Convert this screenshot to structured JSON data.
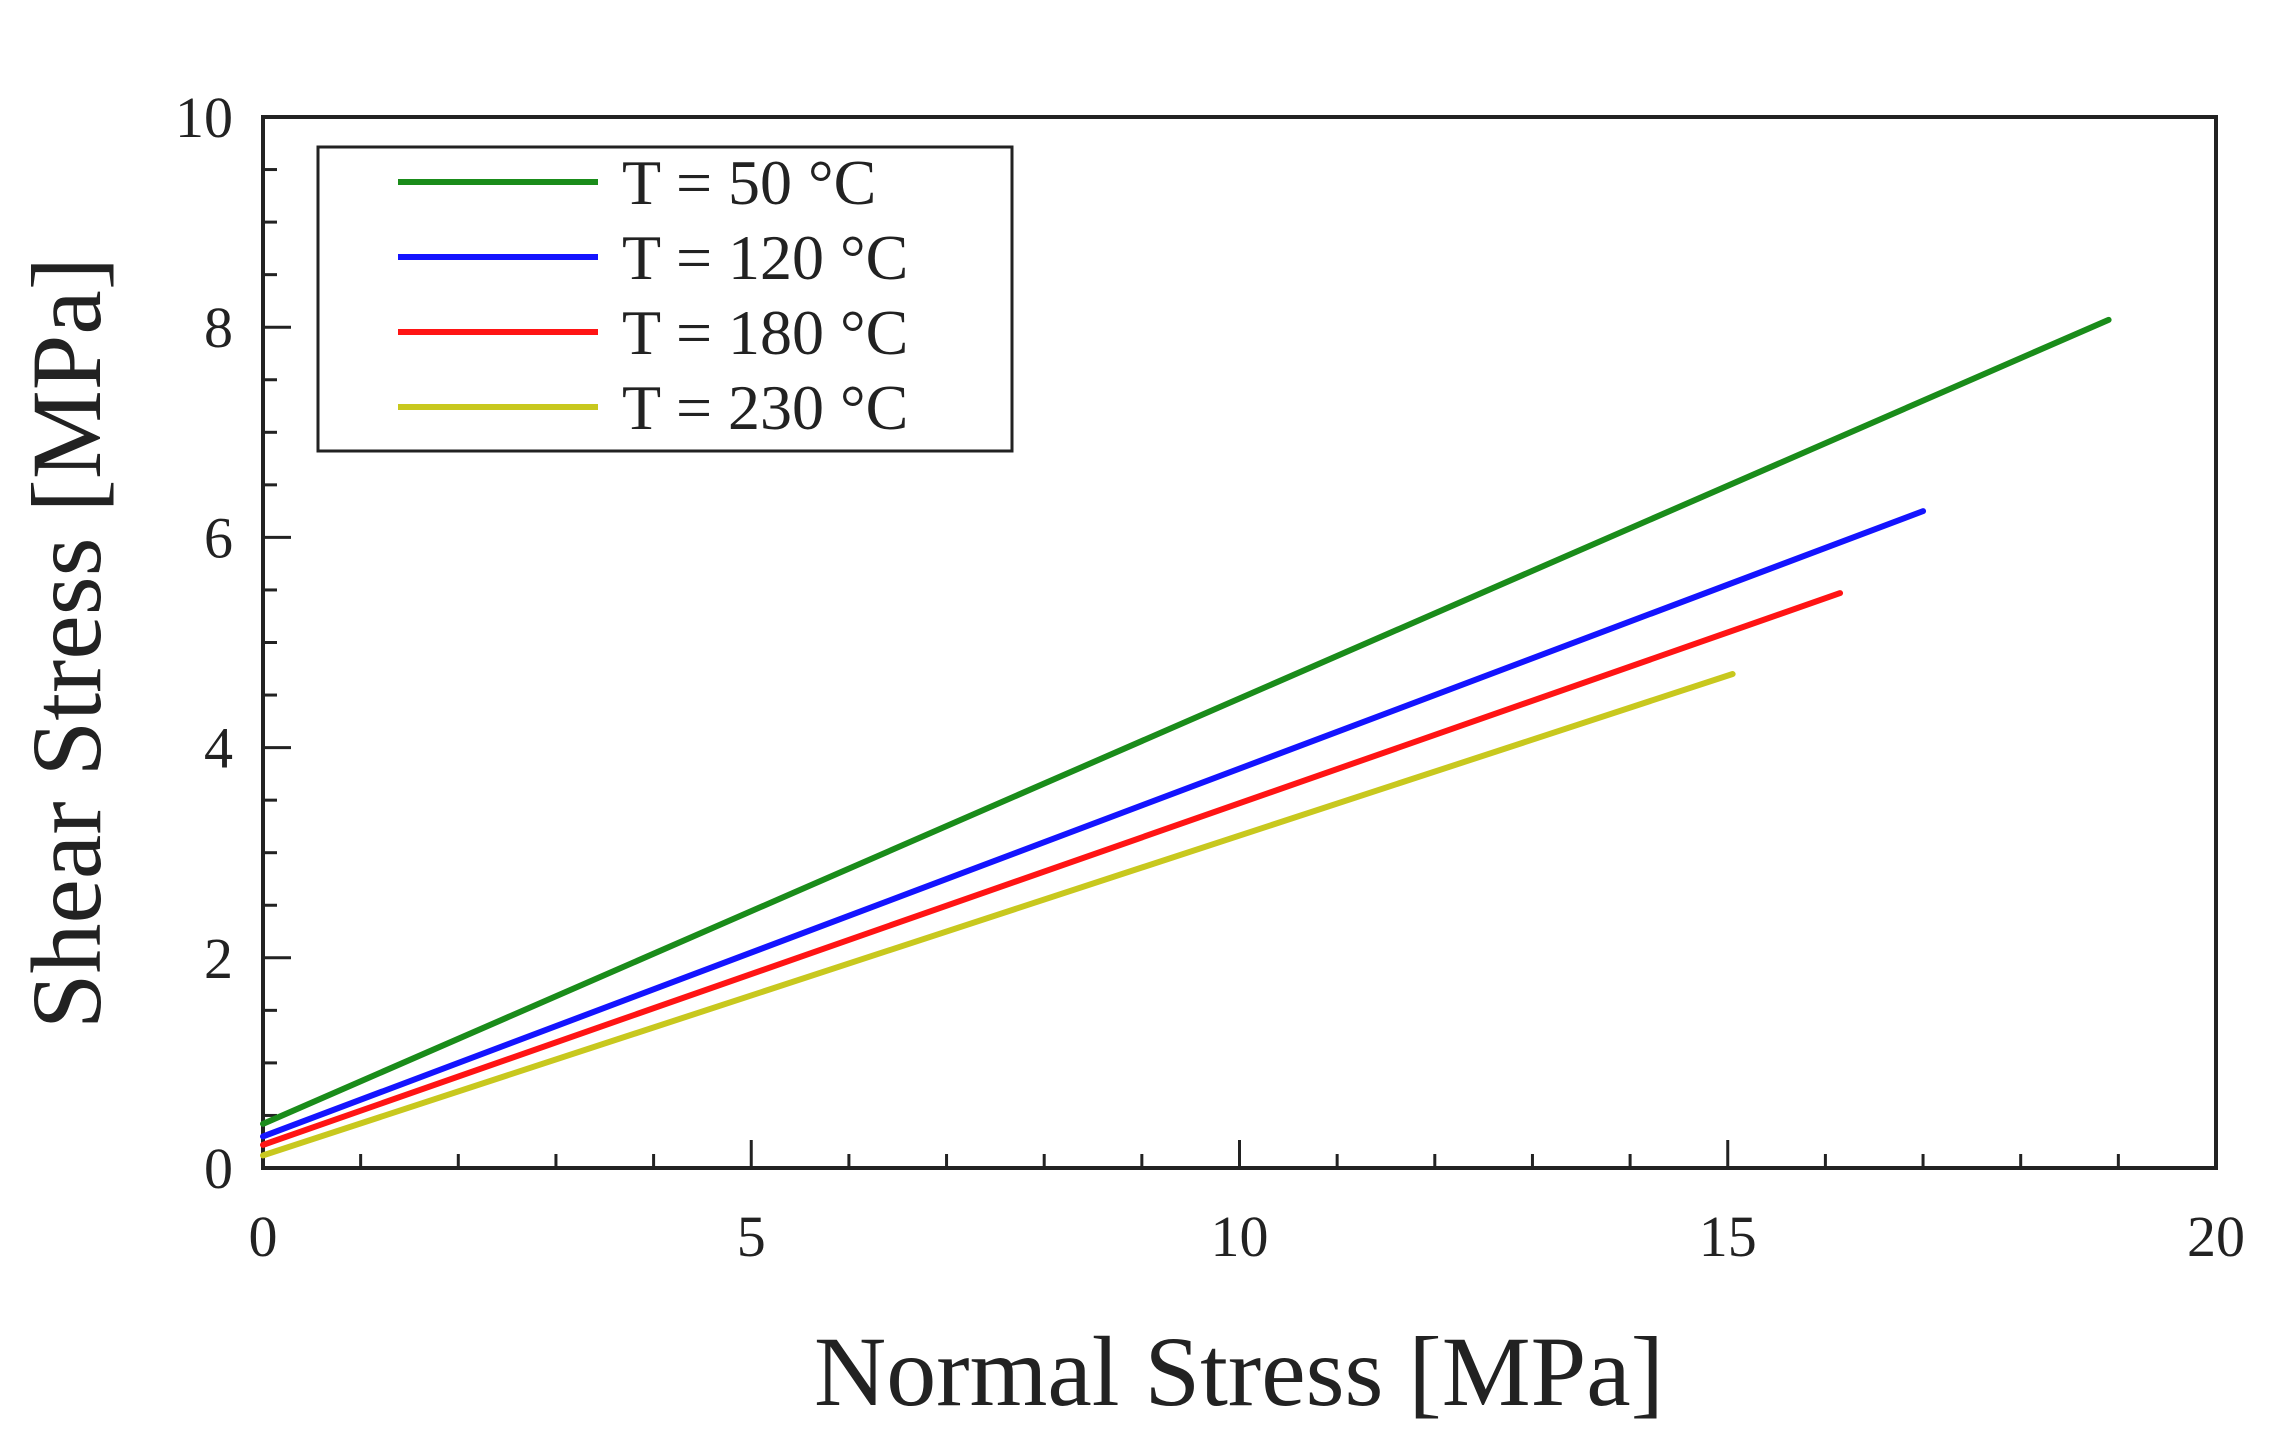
{
  "chart_data": {
    "type": "line",
    "title": "",
    "xlabel": "Normal Stress [MPa]",
    "ylabel": "Shear Stress [MPa]",
    "xlim": [
      0,
      20
    ],
    "ylim": [
      0,
      10
    ],
    "xticks": [
      0,
      5,
      10,
      15,
      20
    ],
    "yticks": [
      0,
      2,
      4,
      6,
      8,
      10
    ],
    "x_minor_step": 1,
    "y_minor_step": 0.5,
    "grid": false,
    "legend_position": "top-left",
    "series": [
      {
        "name": "T = 50 °C",
        "color": "#1a8c1a",
        "x": [
          0,
          18.9
        ],
        "y": [
          0.42,
          8.07
        ]
      },
      {
        "name": "T = 120 °C",
        "color": "#1414ff",
        "x": [
          0,
          17.0
        ],
        "y": [
          0.3,
          6.25
        ]
      },
      {
        "name": "T = 180 °C",
        "color": "#ff1414",
        "x": [
          0,
          16.15
        ],
        "y": [
          0.22,
          5.47
        ]
      },
      {
        "name": "T = 230 °C",
        "color": "#c8c81e",
        "x": [
          0,
          15.05
        ],
        "y": [
          0.12,
          4.7
        ]
      }
    ]
  }
}
